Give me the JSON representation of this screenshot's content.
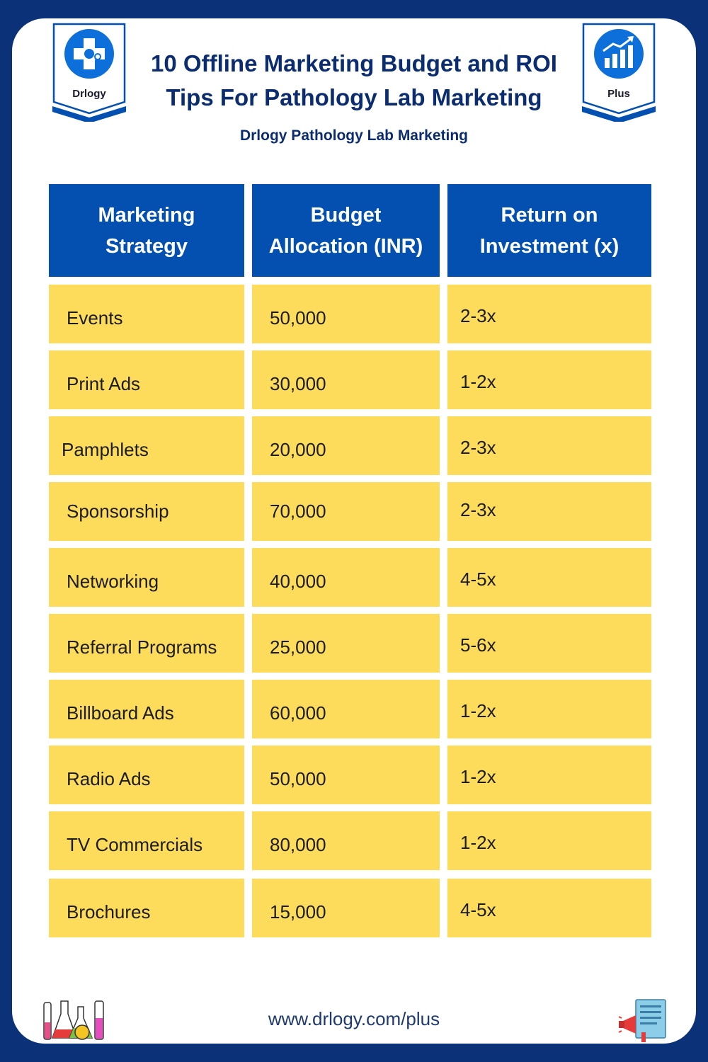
{
  "header": {
    "title_line1": "10 Offline Marketing Budget and ROI",
    "title_line2": "Tips For Pathology Lab Marketing",
    "subtitle": "Drlogy Pathology Lab Marketing",
    "left_badge_label": "Drlogy",
    "right_badge_label": "Plus"
  },
  "table": {
    "headers": [
      [
        "Marketing",
        "Strategy"
      ],
      [
        "Budget",
        "Allocation (INR)"
      ],
      [
        "Return on",
        "Investment (x)"
      ]
    ],
    "rows": [
      {
        "strategy": "Events",
        "budget": "50,000",
        "roi": "2-3x"
      },
      {
        "strategy": "Print Ads",
        "budget": "30,000",
        "roi": "1-2x"
      },
      {
        "strategy": "Pamphlets",
        "budget": "20,000",
        "roi": "2-3x"
      },
      {
        "strategy": "Sponsorship",
        "budget": "70,000",
        "roi": "2-3x"
      },
      {
        "strategy": "Networking",
        "budget": "40,000",
        "roi": "4-5x"
      },
      {
        "strategy": "Referral Programs",
        "budget": "25,000",
        "roi": "5-6x"
      },
      {
        "strategy": "Billboard Ads",
        "budget": "60,000",
        "roi": "1-2x"
      },
      {
        "strategy": "Radio Ads",
        "budget": "50,000",
        "roi": "1-2x"
      },
      {
        "strategy": "TV Commercials",
        "budget": "80,000",
        "roi": "1-2x"
      },
      {
        "strategy": "Brochures",
        "budget": "15,000",
        "roi": "4-5x"
      }
    ]
  },
  "footer": {
    "url": "www.drlogy.com/plus"
  },
  "icons": {
    "left_badge": "drlogy-logo-icon",
    "right_badge": "growth-chart-icon",
    "bottom_left": "lab-flasks-icon",
    "bottom_right": "megaphone-document-icon"
  },
  "colors": {
    "background": "#0b3278",
    "header_cell": "#0350b0",
    "data_cell": "#fddc5c",
    "title": "#0b2c6e"
  }
}
